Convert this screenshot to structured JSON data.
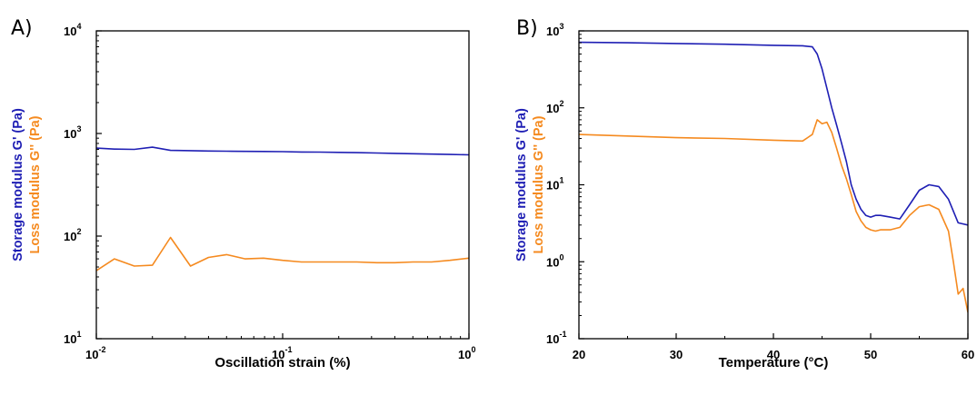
{
  "chart_data": [
    {
      "panel": "A)",
      "type": "line",
      "xscale": "log",
      "yscale": "log",
      "xlabel": "Oscillation strain (%)",
      "ylabel_storage": "Storage modulus G' (Pa)",
      "ylabel_loss": "Loss modulus G'' (Pa)",
      "xlim": [
        0.01,
        1
      ],
      "ylim": [
        10,
        10000
      ],
      "xticks": [
        {
          "base": "10",
          "exp": "-2"
        },
        {
          "base": "10",
          "exp": "-1"
        },
        {
          "base": "10",
          "exp": "0"
        }
      ],
      "yticks": [
        {
          "base": "10",
          "exp": "1"
        },
        {
          "base": "10",
          "exp": "2"
        },
        {
          "base": "10",
          "exp": "3"
        },
        {
          "base": "10",
          "exp": "4"
        }
      ],
      "colors": {
        "storage": "#1f1fb4",
        "loss": "#f58a1f"
      },
      "series": [
        {
          "key": "storage",
          "x": [
            0.01,
            0.0125,
            0.016,
            0.02,
            0.025,
            0.032,
            0.04,
            0.05,
            0.063,
            0.079,
            0.1,
            0.126,
            0.158,
            0.2,
            0.25,
            0.32,
            0.4,
            0.5,
            0.63,
            0.79,
            1.0
          ],
          "y": [
            720,
            705,
            700,
            735,
            685,
            680,
            675,
            672,
            670,
            668,
            665,
            660,
            658,
            655,
            650,
            645,
            640,
            635,
            630,
            625,
            620
          ]
        },
        {
          "key": "loss",
          "x": [
            0.01,
            0.0125,
            0.016,
            0.02,
            0.025,
            0.032,
            0.04,
            0.05,
            0.063,
            0.079,
            0.1,
            0.126,
            0.158,
            0.2,
            0.25,
            0.32,
            0.4,
            0.5,
            0.63,
            0.79,
            1.0
          ],
          "y": [
            46,
            60,
            51,
            52,
            97,
            51,
            62,
            66,
            60,
            61,
            58,
            56,
            56,
            56,
            56,
            55,
            55,
            56,
            56,
            58,
            61
          ]
        }
      ]
    },
    {
      "panel": "B)",
      "type": "line",
      "xscale": "linear",
      "yscale": "log",
      "xlabel": "Temperature (°C)",
      "ylabel_storage": "Storage modulus G' (Pa)",
      "ylabel_loss": "Loss modulus G'' (Pa)",
      "xlim": [
        20,
        60
      ],
      "ylim": [
        0.1,
        1000
      ],
      "xticks": [
        "20",
        "30",
        "40",
        "50",
        "60"
      ],
      "yticks": [
        {
          "base": "10",
          "exp": "-1"
        },
        {
          "base": "10",
          "exp": "0"
        },
        {
          "base": "10",
          "exp": "1"
        },
        {
          "base": "10",
          "exp": "2"
        },
        {
          "base": "10",
          "exp": "3"
        }
      ],
      "colors": {
        "storage": "#1f1fb4",
        "loss": "#f58a1f"
      },
      "series": [
        {
          "key": "storage",
          "x": [
            20,
            25,
            30,
            35,
            40,
            43,
            44,
            44.5,
            45,
            45.5,
            46,
            46.5,
            47,
            47.5,
            48,
            48.5,
            49,
            49.5,
            50,
            50.5,
            51,
            52,
            53,
            54,
            55,
            56,
            57,
            58,
            59,
            60
          ],
          "y": [
            710,
            700,
            685,
            670,
            650,
            640,
            620,
            500,
            320,
            180,
            100,
            60,
            35,
            20,
            10,
            6.5,
            4.8,
            4.0,
            3.8,
            4.0,
            4.0,
            3.8,
            3.6,
            5.5,
            8.5,
            10.0,
            9.5,
            6.5,
            3.2,
            3.0
          ]
        },
        {
          "key": "loss",
          "x": [
            20,
            25,
            30,
            35,
            40,
            43,
            44,
            44.5,
            45,
            45.5,
            46,
            46.5,
            47,
            47.5,
            48,
            48.5,
            49,
            49.5,
            50,
            50.5,
            51,
            52,
            53,
            54,
            55,
            56,
            57,
            58,
            58.5,
            59,
            59.5,
            60
          ],
          "y": [
            45,
            43,
            41,
            40,
            38,
            37,
            45,
            70,
            62,
            65,
            48,
            30,
            18,
            12,
            7.5,
            4.5,
            3.4,
            2.8,
            2.6,
            2.5,
            2.6,
            2.6,
            2.8,
            4.0,
            5.2,
            5.5,
            4.8,
            2.5,
            1.0,
            0.38,
            0.45,
            0.22
          ]
        }
      ]
    }
  ]
}
